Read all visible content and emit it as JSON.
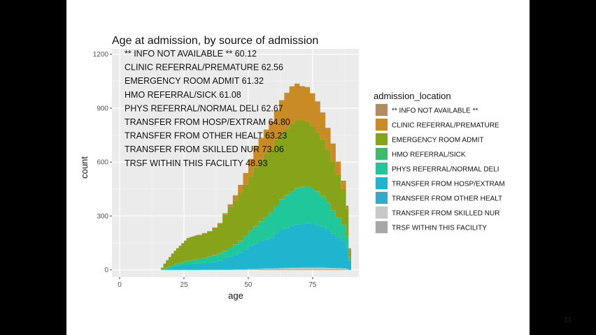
{
  "slide": {
    "number": "21"
  },
  "chart_data": {
    "type": "area",
    "stacked": true,
    "title": "Age at admission, by source of admission",
    "xlabel": "age",
    "ylabel": "count",
    "xlim": [
      -3,
      93
    ],
    "ylim": [
      -40,
      1230
    ],
    "xticks": [
      0,
      25,
      50,
      75
    ],
    "yticks": [
      0,
      300,
      600,
      900,
      1200
    ],
    "grid": true,
    "legend_title": "admission_location",
    "legend_position": "right",
    "x": [
      15,
      16,
      17,
      18,
      19,
      20,
      21,
      22,
      23,
      24,
      25,
      26,
      27,
      28,
      29,
      30,
      32,
      34,
      36,
      38,
      40,
      42,
      44,
      46,
      48,
      50,
      52,
      54,
      56,
      58,
      60,
      62,
      64,
      66,
      68,
      70,
      72,
      74,
      76,
      78,
      80,
      82,
      84,
      86,
      88,
      89
    ],
    "series": [
      {
        "name": "** INFO NOT AVAILABLE **",
        "color": "#b38b60",
        "values": [
          0,
          0,
          0,
          0,
          0,
          0,
          0,
          0,
          0,
          0,
          0,
          0,
          0,
          0,
          0,
          0,
          0,
          0,
          0,
          0,
          0,
          0,
          0,
          0,
          0,
          2,
          2,
          3,
          3,
          3,
          3,
          3,
          3,
          3,
          3,
          3,
          3,
          3,
          3,
          3,
          3,
          3,
          3,
          3,
          2,
          0
        ]
      },
      {
        "name": "TRANSFER FROM SKILLED NUR",
        "color": "#c8c8c8",
        "values": [
          0,
          0,
          0,
          0,
          0,
          0,
          0,
          0,
          0,
          0,
          0,
          0,
          0,
          0,
          0,
          0,
          0,
          0,
          0,
          0,
          0,
          0,
          1,
          1,
          1,
          2,
          2,
          3,
          4,
          4,
          5,
          6,
          7,
          8,
          8,
          9,
          9,
          9,
          9,
          9,
          8,
          7,
          6,
          5,
          3,
          0
        ]
      },
      {
        "name": "TRANSFER FROM OTHER HEALT",
        "color": "#33aacc",
        "values": [
          0,
          0,
          0,
          0,
          0,
          0,
          0,
          0,
          0,
          0,
          0,
          0,
          0,
          0,
          0,
          0,
          1,
          1,
          1,
          1,
          1,
          1,
          1,
          1,
          2,
          2,
          2,
          2,
          2,
          2,
          3,
          3,
          3,
          3,
          3,
          3,
          3,
          3,
          3,
          3,
          3,
          2,
          2,
          2,
          1,
          0
        ]
      },
      {
        "name": "TRANSFER FROM HOSP/EXTRAM",
        "color": "#1fb5cf",
        "values": [
          0,
          2,
          5,
          10,
          14,
          18,
          20,
          22,
          24,
          26,
          28,
          30,
          30,
          32,
          34,
          36,
          38,
          40,
          44,
          50,
          60,
          72,
          82,
          95,
          110,
          130,
          140,
          150,
          160,
          170,
          190,
          210,
          220,
          230,
          240,
          240,
          245,
          240,
          235,
          225,
          210,
          190,
          170,
          150,
          120,
          50
        ]
      },
      {
        "name": "PHYS REFERRAL/NORMAL DELI",
        "color": "#20c79a",
        "values": [
          0,
          0,
          2,
          4,
          6,
          8,
          10,
          12,
          14,
          16,
          18,
          20,
          20,
          22,
          24,
          26,
          28,
          32,
          36,
          40,
          44,
          50,
          56,
          64,
          74,
          84,
          95,
          110,
          125,
          140,
          155,
          170,
          180,
          190,
          200,
          205,
          205,
          200,
          185,
          170,
          150,
          130,
          110,
          90,
          60,
          20
        ]
      },
      {
        "name": "HMO REFERRAL/SICK",
        "color": "#3dbb6c",
        "values": [
          0,
          0,
          0,
          0,
          0,
          0,
          1,
          1,
          1,
          1,
          1,
          1,
          1,
          1,
          1,
          1,
          1,
          1,
          2,
          2,
          2,
          2,
          2,
          2,
          2,
          2,
          2,
          2,
          2,
          2,
          2,
          2,
          2,
          2,
          2,
          2,
          2,
          2,
          2,
          1,
          1,
          1,
          1,
          1,
          1,
          0
        ]
      },
      {
        "name": "EMERGENCY ROOM ADMIT",
        "color": "#86a31a",
        "values": [
          0,
          10,
          28,
          40,
          52,
          65,
          75,
          85,
          95,
          105,
          115,
          125,
          130,
          130,
          130,
          130,
          135,
          140,
          150,
          165,
          200,
          225,
          245,
          265,
          285,
          300,
          330,
          345,
          350,
          355,
          365,
          365,
          370,
          375,
          380,
          370,
          360,
          345,
          330,
          315,
          295,
          270,
          240,
          200,
          150,
          40
        ]
      },
      {
        "name": "CLINIC REFERRAL/PREMATURE",
        "color": "#c98b26",
        "values": [
          0,
          0,
          0,
          0,
          0,
          0,
          1,
          1,
          1,
          1,
          1,
          2,
          2,
          2,
          2,
          2,
          2,
          2,
          3,
          3,
          8,
          15,
          28,
          45,
          65,
          95,
          115,
          120,
          135,
          150,
          165,
          185,
          200,
          210,
          200,
          190,
          190,
          180,
          170,
          150,
          120,
          100,
          70,
          45,
          20,
          10
        ]
      },
      {
        "name": "TRSF WITHIN THIS FACILITY",
        "color": "#a8a8a8",
        "values": [
          0,
          0,
          0,
          0,
          0,
          0,
          0,
          0,
          0,
          0,
          0,
          0,
          0,
          0,
          0,
          0,
          0,
          0,
          0,
          0,
          0,
          0,
          0,
          0,
          0,
          0,
          0,
          0,
          0,
          1,
          1,
          1,
          1,
          1,
          1,
          1,
          1,
          1,
          1,
          1,
          1,
          1,
          1,
          1,
          0,
          0
        ]
      }
    ],
    "annotations": [
      "** INFO NOT AVAILABLE ** 60.12",
      "CLINIC REFERRAL/PREMATURE 62.56",
      "EMERGENCY ROOM ADMIT 61.32",
      "HMO REFERRAL/SICK 61.08",
      "PHYS REFERRAL/NORMAL DELI 62.67",
      "TRANSFER FROM HOSP/EXTRAM 64.80",
      "TRANSFER FROM OTHER HEALT 63.23",
      "TRANSFER FROM SKILLED NUR 73.06",
      "TRSF WITHIN THIS FACILITY 48.93"
    ],
    "legend": [
      {
        "label": "** INFO NOT AVAILABLE **",
        "color": "#b38b60"
      },
      {
        "label": "CLINIC REFERRAL/PREMATURE",
        "color": "#c98b26"
      },
      {
        "label": "EMERGENCY ROOM ADMIT",
        "color": "#86a31a"
      },
      {
        "label": "HMO REFERRAL/SICK",
        "color": "#3dbb6c"
      },
      {
        "label": "PHYS REFERRAL/NORMAL DELI",
        "color": "#20c79a"
      },
      {
        "label": "TRANSFER FROM HOSP/EXTRAM",
        "color": "#1fb5cf"
      },
      {
        "label": "TRANSFER FROM OTHER HEALT",
        "color": "#33aacc"
      },
      {
        "label": "TRANSFER FROM SKILLED NUR",
        "color": "#c8c8c8"
      },
      {
        "label": "TRSF WITHIN THIS FACILITY",
        "color": "#a8a8a8"
      }
    ]
  }
}
